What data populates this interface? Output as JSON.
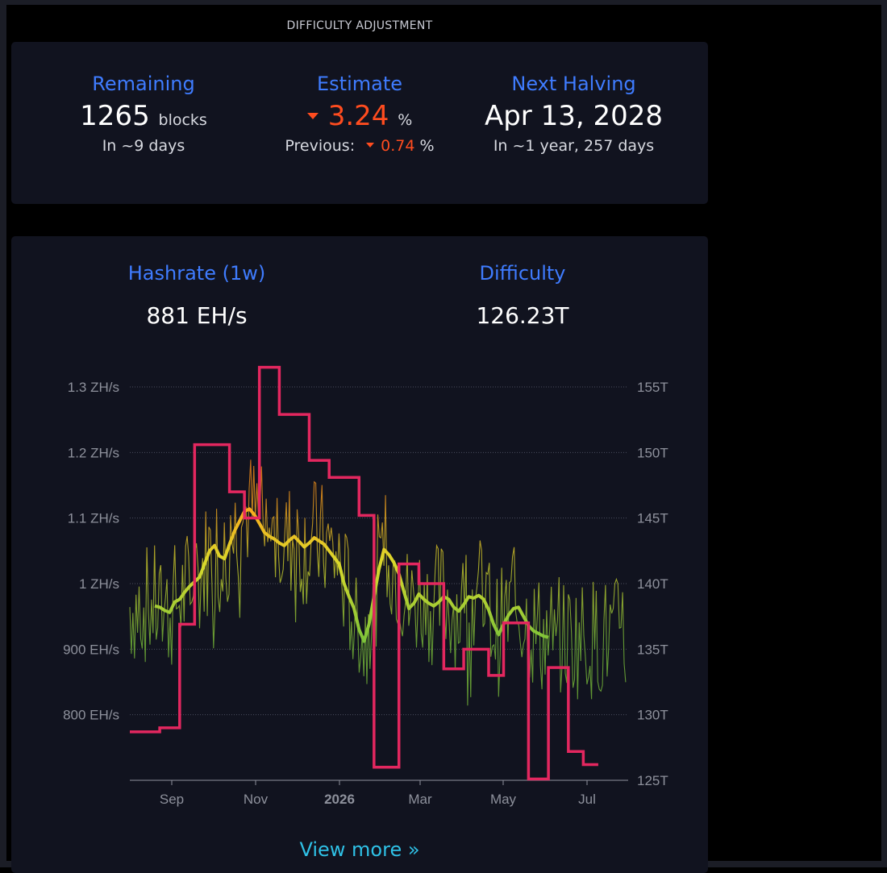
{
  "difficulty_adjustment": {
    "title": "DIFFICULTY ADJUSTMENT",
    "remaining": {
      "label": "Remaining",
      "value": "1265",
      "unit": "blocks",
      "sub": "In ~9 days"
    },
    "estimate": {
      "label": "Estimate",
      "value": "3.24",
      "unit": "%",
      "previous_label": "Previous:",
      "previous_value": "0.74",
      "previous_unit": "%"
    },
    "next_halving": {
      "label": "Next Halving",
      "value": "Apr 13, 2028",
      "sub": "In ~1 year, 257 days"
    }
  },
  "hashrate": {
    "label": "Hashrate (1w)",
    "value": "881 EH/s",
    "difficulty_label": "Difficulty",
    "difficulty_value": "126.23T"
  },
  "view_more": "View more »",
  "colors": {
    "accent": "#3f7cff",
    "negative": "#ff4c1f",
    "difficulty_line": "#e3275f",
    "link": "#2fc1e6"
  },
  "chart_data": {
    "type": "line",
    "x_ticks": [
      "Sep",
      "Nov",
      "2026",
      "Mar",
      "May",
      "Jul"
    ],
    "y_left_ticks": [
      "800 EH/s",
      "900 EH/s",
      "1 ZH/s",
      "1.1 ZH/s",
      "1.2 ZH/s",
      "1.3 ZH/s"
    ],
    "y_left_values": [
      800,
      900,
      1000,
      1100,
      1200,
      1300
    ],
    "y_left_range_ehs": [
      700,
      1300
    ],
    "y_right_ticks": [
      "125T",
      "130T",
      "135T",
      "140T",
      "145T",
      "150T",
      "155T"
    ],
    "y_right_values": [
      125,
      130,
      135,
      140,
      145,
      150,
      155
    ],
    "y_right_range_t": [
      125,
      155
    ],
    "grid": true,
    "series": [
      {
        "key": "hashrate_avg",
        "points": [
          [
            0.05,
            966
          ],
          [
            0.06,
            964
          ],
          [
            0.07,
            959
          ],
          [
            0.08,
            956
          ],
          [
            0.09,
            972
          ],
          [
            0.1,
            976
          ],
          [
            0.11,
            987
          ],
          [
            0.12,
            996
          ],
          [
            0.14,
            1010
          ],
          [
            0.15,
            1030
          ],
          [
            0.16,
            1050
          ],
          [
            0.17,
            1058
          ],
          [
            0.18,
            1042
          ],
          [
            0.19,
            1038
          ],
          [
            0.2,
            1060
          ],
          [
            0.21,
            1080
          ],
          [
            0.22,
            1095
          ],
          [
            0.23,
            1110
          ],
          [
            0.24,
            1114
          ],
          [
            0.25,
            1105
          ],
          [
            0.26,
            1092
          ],
          [
            0.27,
            1078
          ],
          [
            0.28,
            1072
          ],
          [
            0.29,
            1068
          ],
          [
            0.3,
            1062
          ],
          [
            0.31,
            1058
          ],
          [
            0.32,
            1066
          ],
          [
            0.33,
            1072
          ],
          [
            0.34,
            1064
          ],
          [
            0.35,
            1056
          ],
          [
            0.36,
            1062
          ],
          [
            0.37,
            1070
          ],
          [
            0.38,
            1065
          ],
          [
            0.39,
            1060
          ],
          [
            0.4,
            1050
          ],
          [
            0.41,
            1040
          ],
          [
            0.42,
            1030
          ],
          [
            0.43,
            1000
          ],
          [
            0.44,
            980
          ],
          [
            0.45,
            962
          ],
          [
            0.46,
            930
          ],
          [
            0.47,
            912
          ],
          [
            0.48,
            938
          ],
          [
            0.49,
            980
          ],
          [
            0.5,
            1022
          ],
          [
            0.51,
            1052
          ],
          [
            0.52,
            1044
          ],
          [
            0.53,
            1032
          ],
          [
            0.54,
            1015
          ],
          [
            0.55,
            988
          ],
          [
            0.56,
            962
          ],
          [
            0.57,
            970
          ],
          [
            0.58,
            984
          ],
          [
            0.59,
            976
          ],
          [
            0.6,
            970
          ],
          [
            0.61,
            966
          ],
          [
            0.62,
            972
          ],
          [
            0.63,
            980
          ],
          [
            0.64,
            976
          ],
          [
            0.65,
            964
          ],
          [
            0.66,
            958
          ],
          [
            0.67,
            968
          ],
          [
            0.68,
            980
          ],
          [
            0.69,
            978
          ],
          [
            0.7,
            982
          ],
          [
            0.71,
            976
          ],
          [
            0.72,
            960
          ],
          [
            0.73,
            938
          ],
          [
            0.74,
            922
          ],
          [
            0.75,
            938
          ],
          [
            0.76,
            952
          ],
          [
            0.77,
            962
          ],
          [
            0.78,
            964
          ],
          [
            0.79,
            950
          ],
          [
            0.8,
            936
          ],
          [
            0.81,
            928
          ],
          [
            0.82,
            924
          ],
          [
            0.83,
            920
          ],
          [
            0.84,
            918
          ]
        ]
      },
      {
        "key": "difficulty",
        "steps": [
          [
            0.0,
            128.7
          ],
          [
            0.06,
            129.0
          ],
          [
            0.1,
            136.9
          ],
          [
            0.13,
            150.6
          ],
          [
            0.2,
            147.0
          ],
          [
            0.23,
            145.0
          ],
          [
            0.26,
            156.5
          ],
          [
            0.3,
            152.9
          ],
          [
            0.36,
            149.4
          ],
          [
            0.4,
            148.1
          ],
          [
            0.46,
            145.2
          ],
          [
            0.49,
            126.0
          ],
          [
            0.54,
            141.5
          ],
          [
            0.58,
            140.0
          ],
          [
            0.63,
            133.5
          ],
          [
            0.67,
            135.0
          ],
          [
            0.72,
            133.0
          ],
          [
            0.75,
            137.0
          ],
          [
            0.8,
            125.1
          ],
          [
            0.84,
            133.6
          ],
          [
            0.88,
            127.2
          ],
          [
            0.91,
            126.2
          ],
          [
            0.94,
            126.2
          ]
        ]
      }
    ]
  }
}
